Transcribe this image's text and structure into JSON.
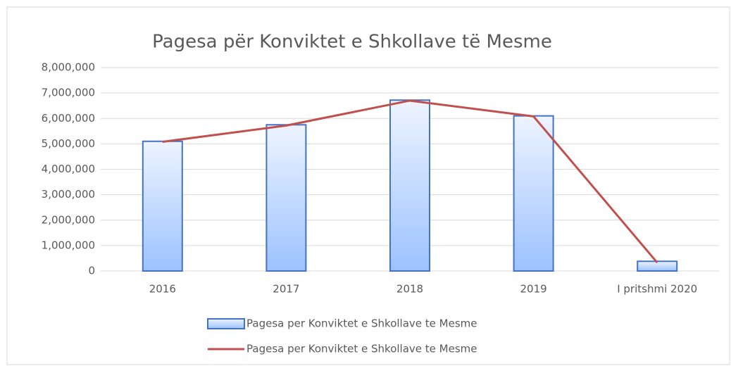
{
  "chart_data": {
    "type": "combo",
    "title": "Pagesa për Konviktet e Shkollave të Mesme",
    "categories": [
      "2016",
      "2017",
      "2018",
      "2019",
      "I pritshmi 2020"
    ],
    "series": [
      {
        "name": "Pagesa per Konviktet e Shkollave te Mesme",
        "type": "bar",
        "color": "#4472c4",
        "values": [
          5100000,
          5750000,
          6720000,
          6100000,
          380000
        ]
      },
      {
        "name": "Pagesa per Konviktet e Shkollave te Mesme",
        "type": "line",
        "color": "#c0504d",
        "values": [
          5080000,
          5720000,
          6700000,
          6080000,
          330000
        ]
      }
    ],
    "ylim": [
      0,
      8000000
    ],
    "yticks": [
      0,
      {
        "value": 1000000,
        "label": "1,000,000"
      },
      {
        "value": 2000000,
        "label": "2,000,000"
      },
      {
        "value": 3000000,
        "label": "3,000,000"
      },
      {
        "value": 4000000,
        "label": "4,000,000"
      },
      {
        "value": 5000000,
        "label": "5,000,000"
      },
      {
        "value": 6000000,
        "label": "6,000,000"
      },
      {
        "value": 7000000,
        "label": "7,000,000"
      },
      {
        "value": 8000000,
        "label": "8,000,000"
      }
    ],
    "grid": true,
    "legend": "bottom"
  }
}
